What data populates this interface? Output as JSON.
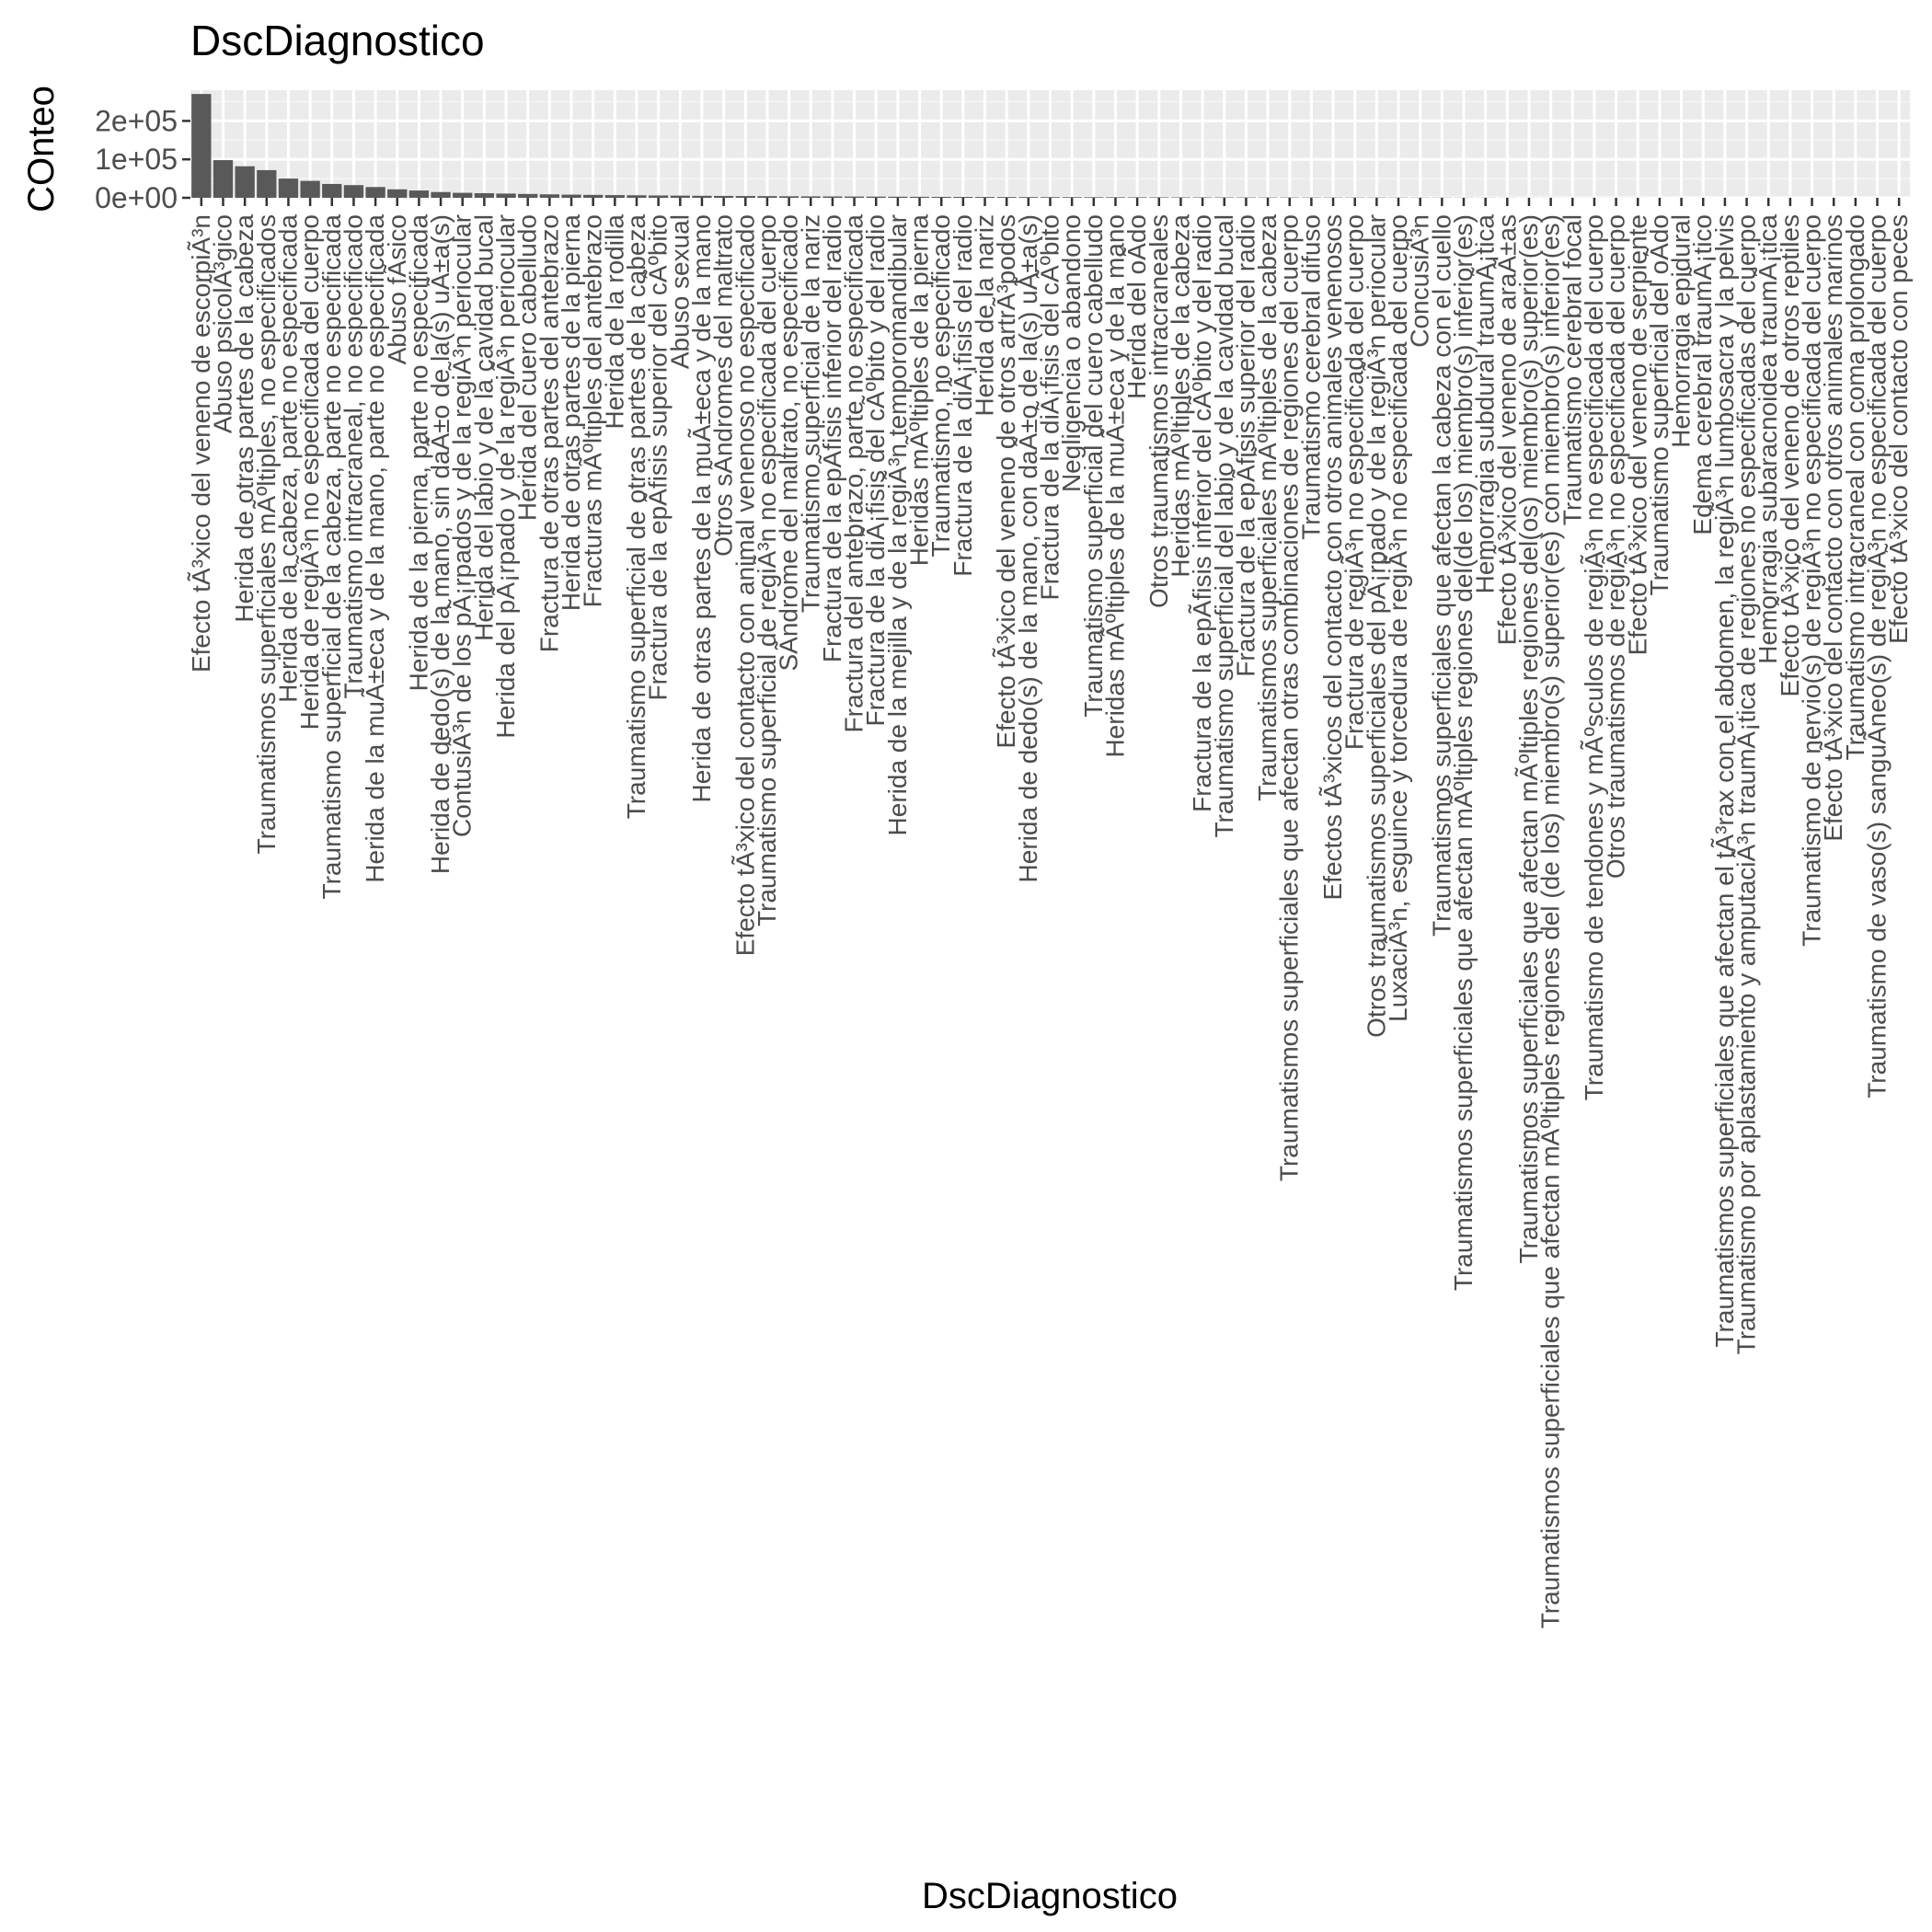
{
  "chart_data": {
    "type": "bar",
    "title": "DscDiagnostico",
    "xlabel": "DscDiagnostico",
    "ylabel": "COnteo",
    "ylim": [
      0,
      280000
    ],
    "yticks": [
      0,
      100000,
      200000
    ],
    "ytick_labels": [
      "0e+00",
      "1e+05",
      "2e+05"
    ],
    "grid": true,
    "bar_color": "#595959",
    "panel_color": "#ebebeb",
    "categories": [
      "Efecto tÃ³xico del veneno de escorpiÃ³n",
      "Abuso psicolÃ³gico",
      "Herida de otras partes de la cabeza",
      "Traumatismos superficiales mÃºltiples, no especificados",
      "Herida de la cabeza, parte no especificada",
      "Herida de regiÃ³n no especificada del cuerpo",
      "Traumatismo superficial de la cabeza, parte no especificada",
      "Traumatismo intracraneal, no especificado",
      "Herida de la muÃ±eca y de la mano, parte no especificada",
      "Abuso fÃ­sico",
      "Herida de la pierna, parte no especificada",
      "Herida de dedo(s) de la mano, sin daÃ±o de la(s) uÃ±a(s)",
      "ContusiÃ³n de los pÃ¡rpados y de la regiÃ³n periocular",
      "Herida del labio y de la cavidad bucal",
      "Herida del pÃ¡rpado y de la regiÃ³n periocular",
      "Herida del cuero cabelludo",
      "Fractura de otras partes del antebrazo",
      "Herida de otras partes de la pierna",
      "Fracturas mÃºltiples del antebrazo",
      "Herida de la rodilla",
      "Traumatismo superficial de otras partes de la cabeza",
      "Fractura de la epÃ­fisis superior del cÃºbito",
      "Abuso sexual",
      "Herida de otras partes de la muÃ±eca y de la mano",
      "Otros sÃ­ndromes del maltrato",
      "Efecto tÃ³xico del contacto con animal venenoso no especificado",
      "Traumatismo superficial de regiÃ³n no especificada del cuerpo",
      "SÃ­ndrome del maltrato, no especificado",
      "Traumatismo superficial de la nariz",
      "Fractura de la epÃ­fisis inferior del radio",
      "Fractura del antebrazo, parte no especificada",
      "Fractura de la diÃ¡fisis del cÃºbito y del radio",
      "Herida de la mejilla y de la regiÃ³n temporomandibular",
      "Heridas mÃºltiples de la pierna",
      "Traumatismo, no especificado",
      "Fractura de la diÃ¡fisis del radio",
      "Herida de la nariz",
      "Efecto tÃ³xico del veneno de otros artrÃ³podos",
      "Herida de dedo(s) de la mano, con daÃ±o de la(s) uÃ±a(s)",
      "Fractura de la diÃ¡fisis del cÃºbito",
      "Negligencia o abandono",
      "Traumatismo superficial del cuero cabelludo",
      "Heridas mÃºltiples de la muÃ±eca y de la mano",
      "Herida del oÃ­do",
      "Otros traumatismos intracraneales",
      "Heridas mÃºltiples de la cabeza",
      "Fractura de la epÃ­fisis inferior del cÃºbito y del radio",
      "Traumatismo superficial del labio y de la cavidad bucal",
      "Fractura de la epÃ­fisis superior del radio",
      "Traumatismos superficiales mÃºltiples de la cabeza",
      "Traumatismos superficiales que afectan otras combinaciones de regiones del cuerpo",
      "Traumatismo cerebral difuso",
      "Efectos tÃ³xicos del contacto con otros animales venenosos",
      "Fractura de regiÃ³n no especificada del cuerpo",
      "Otros traumatismos superficiales del pÃ¡rpado y de la regiÃ³n periocular",
      "LuxaciÃ³n, esguince y torcedura de regiÃ³n no especificada del cuerpo",
      "ConcusiÃ³n",
      "Traumatismos superficiales que afectan la cabeza con el cuello",
      "Traumatismos superficiales que afectan mÃºltiples regiones del(de los) miembro(s) inferior(es)",
      "Hemorragia subdural traumÃ¡tica",
      "Efecto tÃ³xico del veneno de araÃ±as",
      "Traumatismos superficiales que afectan mÃºltiples regiones del(os) miembro(s) superior(es)",
      "Traumatismos superficiales que afectan mÃºltiples regiones del (de los) miembro(s) superior(es) con miembro(s) inferior(es)",
      "Traumatismo cerebral focal",
      "Traumatismo de tendones y mÃºsculos de regiÃ³n no especificada del cuerpo",
      "Otros traumatismos de regiÃ³n no especificada del cuerpo",
      "Efecto tÃ³xico del veneno de serpiente",
      "Traumatismo superficial del oÃ­do",
      "Hemorragia epidural",
      "Edema cerebral traumÃ¡tico",
      "Traumatismos superficiales que afectan el tÃ³rax con el abdomen, la regiÃ³n lumbosacra y la pelvis",
      "Traumatismo por aplastamiento y amputaciÃ³n traumÃ¡tica de regiones no especificadas del cuerpo",
      "Hemorragia subaracnoidea traumÃ¡tica",
      "Efecto tÃ³xico del veneno de otros reptiles",
      "Traumatismo de nervio(s) de regiÃ³n no especificada del cuerpo",
      "Efecto tÃ³xico del contacto con otros animales marinos",
      "Traumatismo intracraneal con coma prolongado",
      "Traumatismo de vaso(s) sanguÃ­neo(s) de regiÃ³n no especificada del cuerpo",
      "Efecto tÃ³xico del contacto con peces"
    ],
    "values": [
      270000,
      98000,
      82000,
      72000,
      50000,
      44000,
      36000,
      33000,
      28000,
      22000,
      19000,
      15000,
      13000,
      12000,
      11000,
      10000,
      9000,
      8200,
      7600,
      7000,
      6500,
      6000,
      5600,
      5200,
      4900,
      4600,
      4300,
      4000,
      3700,
      3500,
      3300,
      3100,
      2900,
      2700,
      2500,
      2400,
      2200,
      2100,
      2000,
      1900,
      1800,
      1700,
      1600,
      1500,
      1400,
      1300,
      1250,
      1200,
      1100,
      1000,
      950,
      900,
      850,
      800,
      750,
      700,
      600,
      500,
      420,
      360,
      300,
      250,
      200,
      170,
      140,
      120,
      100,
      80,
      60,
      50,
      40,
      30,
      25,
      20,
      15,
      10,
      8,
      5,
      3
    ]
  }
}
